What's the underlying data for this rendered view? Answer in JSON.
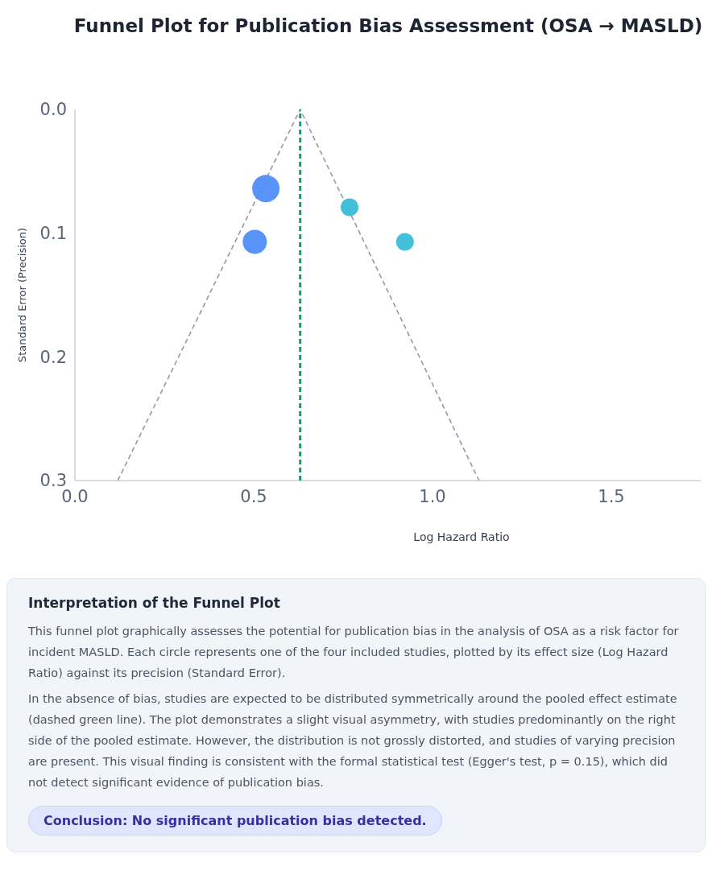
{
  "chart_data": {
    "type": "bubble",
    "title": "Funnel Plot for Publication Bias Assessment (OSA → MASLD)",
    "xlabel": "Log Hazard Ratio",
    "ylabel": "Standard Error (Precision)",
    "xlim": [
      0,
      1.75
    ],
    "ylim": [
      0.3,
      0
    ],
    "xticks": [
      {
        "value": 0,
        "label": "0.0"
      },
      {
        "value": 0.5,
        "label": "0.5"
      },
      {
        "value": 1,
        "label": "1.0"
      },
      {
        "value": 1.5,
        "label": "1.5"
      }
    ],
    "yticks": [
      {
        "value": 0,
        "label": "0.0"
      },
      {
        "value": 0.1,
        "label": "0.1"
      },
      {
        "value": 0.2,
        "label": "0.2"
      },
      {
        "value": 0.3,
        "label": "0.3"
      }
    ],
    "series": [
      {
        "x": [
          0.534,
          0.503,
          0.768,
          0.923
        ],
        "values": [
          0.064,
          0.107,
          0.079,
          0.107
        ],
        "sizes": [
          1,
          0.78,
          0.42,
          0.42
        ],
        "colors": [
          "#4f8ef7",
          "#4f8ef7",
          "#38bdd8",
          "#38bdd8"
        ]
      },
      {
        "type": "line",
        "x": [
          0.12,
          0.63,
          1.13
        ],
        "values": [
          0.3,
          0,
          0.3
        ],
        "color": "#8f99ab",
        "line_style": "dashed"
      }
    ],
    "ref_lines": [
      {
        "axis": "x",
        "value": 0.63,
        "label": null,
        "color": "#0e9f6e",
        "line_style": "dashed"
      }
    ],
    "annotations": [
      "Interpretation of the Funnel Plot",
      "This funnel plot graphically assesses the potential for publication bias in the analysis of OSA as a risk factor for incident MASLD. Each circle represents one of the four included studies, plotted by its effect size (Log Hazard Ratio) against its precision (Standard Error).",
      "In the absence of bias, studies are expected to be distributed symmetrically around the pooled effect estimate (dashed green line). The plot demonstrates a slight visual asymmetry, with studies predominantly on the right side of the pooled estimate. However, the distribution is not grossly distorted, and studies of varying precision are present. This visual finding is consistent with the formal statistical test (Egger's test, p = 0.15), which did not detect significant evidence of publication bias.",
      "Conclusion: No significant publication bias detected."
    ]
  }
}
